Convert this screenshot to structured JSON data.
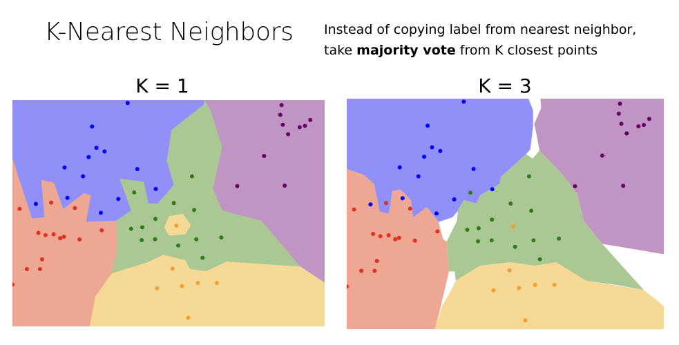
{
  "slide": {
    "title": "K-Nearest Neighbors",
    "subtitle_line1": "Instead of copying label from nearest neighbor,",
    "subtitle_line2_pre": "take ",
    "subtitle_line2_bold": "majority vote",
    "subtitle_line2_post": " from K closest points"
  },
  "colors": {
    "region_blue": "#9090f8",
    "region_red": "#eea792",
    "region_green": "#abc794",
    "region_yellow": "#f6d995",
    "region_purple": "#c095c3",
    "unassigned": "#ffffff",
    "point_blue": "#0000ff",
    "point_red": "#e0301e",
    "point_green": "#2e7d1a",
    "point_yellow": "#f0a030",
    "point_purple": "#660066"
  },
  "chart_data": [
    {
      "type": "scatter",
      "title": "K = 1",
      "description_of_regions": "decision regions of 1-nearest-neighbor classifier",
      "xlim": [
        0,
        100
      ],
      "ylim": [
        0,
        100
      ],
      "axes": "hidden",
      "grid": false,
      "series_ref": "points"
    },
    {
      "type": "scatter",
      "title": "K = 3",
      "description_of_regions": "decision regions of 3-nearest-neighbor classifier; white = tie",
      "xlim": [
        0,
        100
      ],
      "ylim": [
        0,
        100
      ],
      "axes": "hidden",
      "grid": false,
      "series_ref": "points"
    }
  ],
  "points": [
    {
      "class": "blue",
      "color": "#0000ff",
      "x": [
        36.9,
        25.5,
        26.9,
        29.5,
        24.4,
        16.7,
        22.6,
        40.0,
        45.9,
        17.6,
        33.9,
        7.5,
        28.3
      ],
      "y": [
        98.7,
        88.3,
        78.9,
        77.3,
        74.8,
        70.2,
        66.3,
        69.5,
        60.7,
        56.8,
        56.3,
        54.1,
        50.2
      ]
    },
    {
      "class": "red",
      "color": "#e0301e",
      "x": [
        2.3,
        12.4,
        20.0,
        28.6,
        8.3,
        10.6,
        13.2,
        15.3,
        16.5,
        21.5,
        9.5,
        4.6,
        8.8,
        0.0
      ],
      "y": [
        51.9,
        54.7,
        52.3,
        42.4,
        41.3,
        40.3,
        40.7,
        39.0,
        39.6,
        38.4,
        29.6,
        25.3,
        25.3,
        18.5
      ]
    },
    {
      "class": "green",
      "color": "#2e7d1a",
      "x": [
        57.5,
        39.0,
        51.7,
        58.2,
        45.8,
        38.0,
        41.6,
        41.4,
        45.7,
        53.1,
        58.9,
        66.9,
        60.9
      ],
      "y": [
        66.3,
        59.2,
        54.5,
        51.4,
        47.5,
        43.1,
        43.8,
        38.1,
        38.5,
        35.7,
        38.5,
        39.3,
        30.3
      ]
    },
    {
      "class": "yellow",
      "color": "#f0a030",
      "x": [
        52.5,
        51.3,
        46.3,
        54.3,
        59.4,
        65.5,
        56.3
      ],
      "y": [
        44.5,
        25.5,
        16.8,
        17.8,
        19.2,
        19.2,
        3.8
      ]
    },
    {
      "class": "purple",
      "color": "#660066",
      "x": [
        86.2,
        85.8,
        86.6,
        92.0,
        93.7,
        95.4,
        88.3,
        80.6,
        72.0,
        87.2
      ],
      "y": [
        97.8,
        93.5,
        89.1,
        88.0,
        88.6,
        91.2,
        84.9,
        75.3,
        62.0,
        62.2
      ]
    }
  ]
}
